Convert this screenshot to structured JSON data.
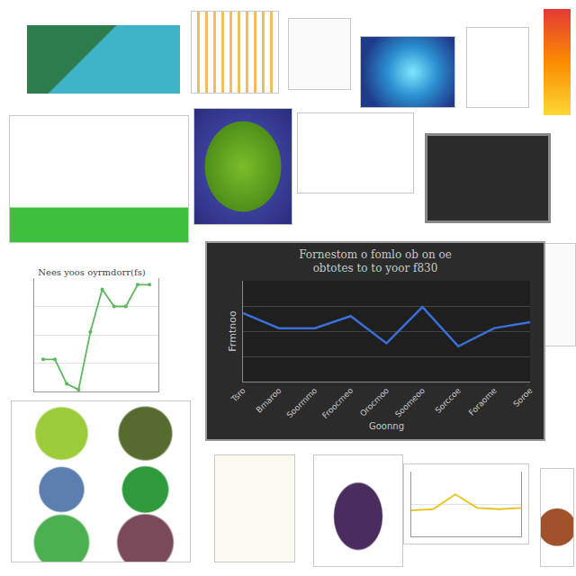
{
  "chart_data": [
    {
      "type": "line",
      "title": "Fornestom o fomlo ob on oe\nobtotes to to yoor f830",
      "x_label": "Goonng",
      "y_label": "Frmtnoo",
      "categories": [
        "Tsro",
        "Bmaroo",
        "Soormmo",
        "Froocmeo",
        "Orocmoo",
        "Soomeoo",
        "Sorccoe",
        "Foraome",
        "Soroe"
      ],
      "values": [
        6.8,
        5.3,
        5.3,
        6.5,
        3.8,
        7.4,
        3.5,
        5.3,
        5.9
      ],
      "color": "#3a6fd8",
      "ylim": [
        0,
        10
      ],
      "yticks": [
        0,
        2.5,
        5,
        7.5,
        10
      ],
      "grid": true,
      "tick_labels": "x"
    },
    {
      "type": "line",
      "title": "Nees yoos oyrmdorr(fs)",
      "categories": [
        null,
        null,
        null,
        null,
        null,
        null,
        null,
        null,
        null,
        null
      ],
      "values": [
        3.4,
        3.4,
        0.8,
        0.2,
        6.3,
        10.8,
        9,
        9,
        11.3,
        11.3
      ],
      "color": "#5cb85c",
      "marker": "circle",
      "ylim": [
        0,
        12
      ],
      "yticks": [
        0,
        3,
        6,
        9,
        12
      ],
      "grid": true,
      "tick_labels": false
    },
    {
      "type": "line",
      "categories": [
        null,
        null,
        null,
        null,
        null,
        null
      ],
      "values": [
        4,
        4.2,
        6.5,
        4.4,
        4.2,
        4.4
      ],
      "color": "#e8c31a",
      "ylim": [
        0,
        10
      ],
      "yticks": [
        0,
        5,
        10
      ],
      "grid": true,
      "tick_labels": false
    }
  ]
}
